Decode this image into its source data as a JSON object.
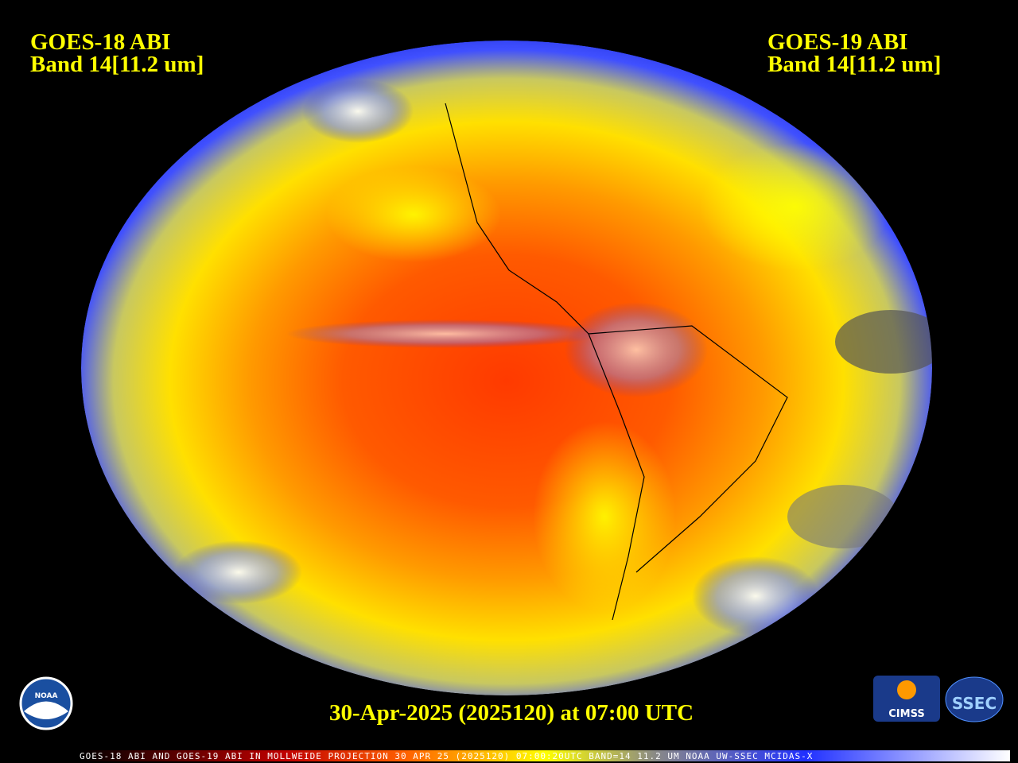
{
  "header": {
    "left": {
      "line1": "GOES-18 ABI",
      "line2": "Band 14[11.2 um]"
    },
    "right": {
      "line1": "GOES-19 ABI",
      "line2": "Band 14[11.2 um]"
    }
  },
  "date": "30-Apr-2025 (2025120) at 07:00 UTC",
  "footer": "GOES-18 ABI AND GOES-19 ABI IN MOLLWEIDE PROJECTION 30 APR 25 (2025120) 07:00:20UTC BAND=14 11.2 UM NOAA UW-SSEC MCIDAS-X",
  "logos": {
    "noaa": "NOAA",
    "cimss": "CIMSS",
    "ssec": "SSEC"
  }
}
